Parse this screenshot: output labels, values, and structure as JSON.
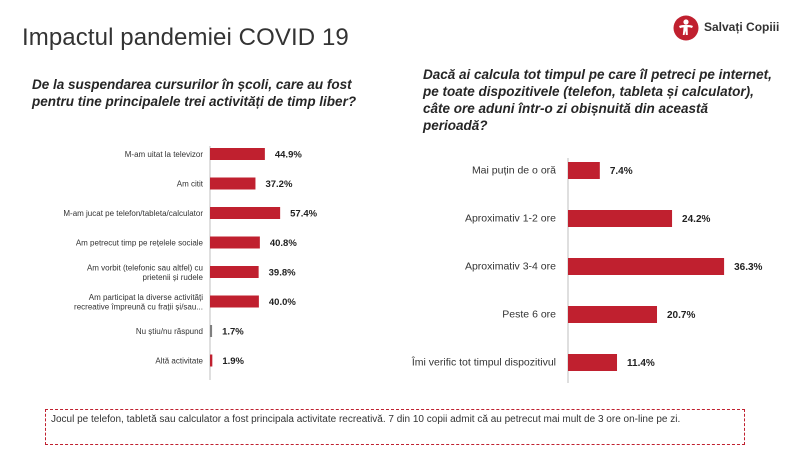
{
  "title": "Impactul pandemiei COVID 19",
  "logo": {
    "text": "Salvați Copiii",
    "icon": "salvati-copiii-logo-icon"
  },
  "accent_color": "#c0202f",
  "left_question": "De la suspendarea cursurilor în școli, care au fost pentru tine principalele trei activități de timp liber?",
  "right_question": "Dacă ai calcula tot timpul pe care îl petreci pe internet, pe toate dispozitivele (telefon, tableta și calculator), câte ore aduni într-o zi obișnuită din această perioadă?",
  "note": "Jocul pe telefon, tabletă sau calculator a fost principala activitate recreativă. 7 din 10 copii admit că au petrecut mai mult de 3 ore on-line pe zi.",
  "chart_data": [
    {
      "type": "bar",
      "orientation": "horizontal",
      "categories": [
        [
          "M-am uitat la televizor"
        ],
        [
          "Am citit"
        ],
        [
          "M-am jucat pe telefon/tableta/calculator"
        ],
        [
          "Am petrecut timp pe rețelele sociale"
        ],
        [
          "Am vorbit (telefonic sau altfel) cu",
          "prietenii și rudele"
        ],
        [
          "Am participat la diverse activități",
          "recreative împreună cu frații și/sau..."
        ],
        [
          "Nu știu/nu răspund"
        ],
        [
          "Altă activitate"
        ]
      ],
      "values": [
        44.9,
        37.2,
        57.4,
        40.8,
        39.8,
        40.0,
        1.7,
        1.9
      ],
      "value_labels": [
        "44.9%",
        "37.2%",
        "57.4%",
        "40.8%",
        "39.8%",
        "40.0%",
        "1.7%",
        "1.9%"
      ],
      "bar_colors": [
        "#c0202f",
        "#c0202f",
        "#c0202f",
        "#c0202f",
        "#c0202f",
        "#c0202f",
        "#7f7f7f",
        "#c0202f"
      ],
      "xlim": [
        0,
        100
      ],
      "grid": false
    },
    {
      "type": "bar",
      "orientation": "horizontal",
      "categories": [
        [
          "Mai puțin de o oră"
        ],
        [
          "Aproximativ 1-2 ore"
        ],
        [
          "Aproximativ 3-4 ore"
        ],
        [
          "Peste 6 ore"
        ],
        [
          "Îmi verific tot timpul dispozitivul"
        ]
      ],
      "values": [
        7.4,
        24.2,
        36.3,
        20.7,
        11.4
      ],
      "value_labels": [
        "7.4%",
        "24.2%",
        "36.3%",
        "20.7%",
        "11.4%"
      ],
      "bar_colors": [
        "#c0202f",
        "#c0202f",
        "#c0202f",
        "#c0202f",
        "#c0202f"
      ],
      "xlim": [
        0,
        100
      ],
      "grid": false
    }
  ]
}
